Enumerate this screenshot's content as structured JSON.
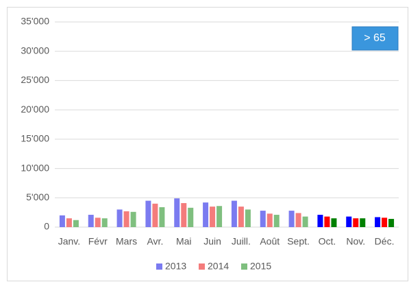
{
  "chart_data": {
    "type": "bar",
    "categories": [
      "Janv.",
      "Févr",
      "Mars",
      "Avr.",
      "Mai",
      "Juin",
      "Juill.",
      "Août",
      "Sept.",
      "Oct.",
      "Nov.",
      "Déc."
    ],
    "series": [
      {
        "name": "2013",
        "color": "#7b7bf0",
        "colors": [
          "#7b7bf0",
          "#7b7bf0",
          "#7b7bf0",
          "#7b7bf0",
          "#7b7bf0",
          "#7b7bf0",
          "#7b7bf0",
          "#7b7bf0",
          "#7b7bf0",
          "#0000ff",
          "#0000ff",
          "#0000ff"
        ],
        "values": [
          2000,
          2100,
          3000,
          4500,
          4900,
          4200,
          4500,
          2800,
          2800,
          2100,
          1800,
          1700
        ]
      },
      {
        "name": "2014",
        "color": "#f47c7c",
        "colors": [
          "#f47c7c",
          "#f47c7c",
          "#f47c7c",
          "#f47c7c",
          "#f47c7c",
          "#f47c7c",
          "#f47c7c",
          "#f47c7c",
          "#f47c7c",
          "#ff0000",
          "#ff0000",
          "#ff0000"
        ],
        "values": [
          1500,
          1600,
          2700,
          4000,
          4100,
          3500,
          3500,
          2300,
          2400,
          1800,
          1500,
          1600
        ]
      },
      {
        "name": "2015",
        "color": "#7fbf7f",
        "colors": [
          "#7fbf7f",
          "#7fbf7f",
          "#7fbf7f",
          "#7fbf7f",
          "#7fbf7f",
          "#7fbf7f",
          "#7fbf7f",
          "#7fbf7f",
          "#7fbf7f",
          "#008000",
          "#008000",
          "#008000"
        ],
        "values": [
          1200,
          1500,
          2600,
          3400,
          3300,
          3600,
          3000,
          2100,
          1800,
          1500,
          1500,
          1400
        ]
      }
    ],
    "ylim": [
      0,
      35000
    ],
    "yticks": [
      0,
      {
        "value": 5000,
        "label": "5'000"
      },
      {
        "value": 10000,
        "label": "10'000"
      },
      {
        "value": 15000,
        "label": "15'000"
      },
      {
        "value": 20000,
        "label": "20'000"
      },
      {
        "value": 25000,
        "label": "25'000"
      },
      {
        "value": 30000,
        "label": "30'000"
      },
      {
        "value": 35000,
        "label": "35'000"
      }
    ],
    "grid": true,
    "legend": "bottom",
    "button_label": "> 65"
  }
}
